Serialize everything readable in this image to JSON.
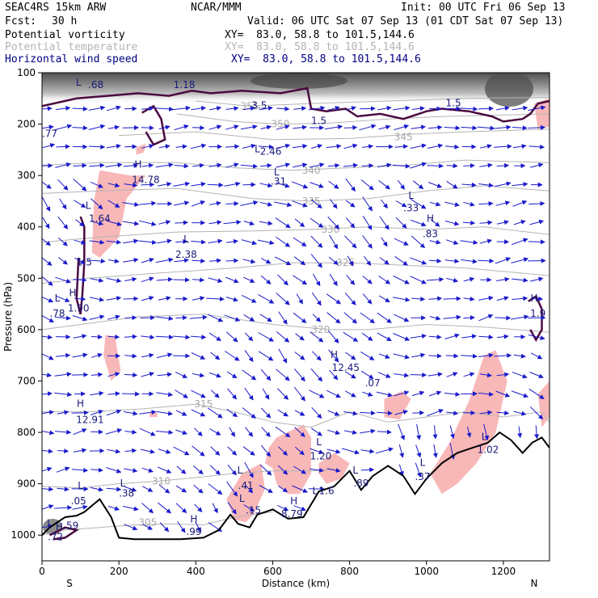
{
  "header": {
    "model": "SEAC4RS 15km ARW",
    "center": "NCAR/MMM",
    "init": "Init: 00 UTC Fri 06 Sep 13",
    "fcst_label": "Fcst:",
    "fcst_value": "30 h",
    "valid": "Valid: 06 UTC Sat 07 Sep 13 (01 CDT Sat 07 Sep 13)",
    "fields": [
      {
        "name": "Potential vorticity",
        "xy": "XY=  83.0, 58.8 to 101.5,144.6",
        "color": "#000000"
      },
      {
        "name": "Potential temperature",
        "xy": "XY=  83.0, 58.8 to 101.5,144.6",
        "color": "#b4b4b4"
      },
      {
        "name": "Horizontal wind speed",
        "xy": "XY=  83.0, 58.8 to 101.5,144.6",
        "color": "#000080"
      }
    ]
  },
  "chart_data": {
    "type": "cross-section",
    "xlabel": "Distance (km)",
    "ylabel": "Pressure (hPa)",
    "xlim": [
      0,
      1320
    ],
    "ylim": [
      1050,
      100
    ],
    "x_ticks": [
      0,
      200,
      400,
      600,
      800,
      1000,
      1200
    ],
    "y_ticks": [
      100,
      200,
      300,
      400,
      500,
      600,
      700,
      800,
      900,
      1000
    ],
    "x_end_labels": {
      "left": "S",
      "right": "N"
    },
    "terrain": [
      [
        0,
        1000
      ],
      [
        20,
        985
      ],
      [
        60,
        965
      ],
      [
        90,
        962
      ],
      [
        110,
        955
      ],
      [
        150,
        930
      ],
      [
        180,
        965
      ],
      [
        200,
        1005
      ],
      [
        240,
        1008
      ],
      [
        300,
        1008
      ],
      [
        360,
        1008
      ],
      [
        420,
        1005
      ],
      [
        460,
        990
      ],
      [
        490,
        960
      ],
      [
        510,
        978
      ],
      [
        540,
        985
      ],
      [
        560,
        960
      ],
      [
        600,
        950
      ],
      [
        640,
        968
      ],
      [
        680,
        965
      ],
      [
        720,
        915
      ],
      [
        760,
        905
      ],
      [
        800,
        875
      ],
      [
        830,
        912
      ],
      [
        860,
        885
      ],
      [
        900,
        865
      ],
      [
        940,
        885
      ],
      [
        970,
        920
      ],
      [
        1000,
        890
      ],
      [
        1040,
        860
      ],
      [
        1080,
        840
      ],
      [
        1120,
        830
      ],
      [
        1160,
        820
      ],
      [
        1190,
        800
      ],
      [
        1220,
        815
      ],
      [
        1250,
        840
      ],
      [
        1275,
        820
      ],
      [
        1300,
        810
      ],
      [
        1320,
        830
      ]
    ],
    "isentropes": [
      {
        "theta": 305,
        "label_at": [
          275,
          975
        ],
        "p": [
          [
            0,
            1000
          ],
          [
            60,
            990
          ],
          [
            150,
            985
          ],
          [
            240,
            980
          ],
          [
            330,
            978
          ],
          [
            420,
            980
          ],
          [
            500,
            965
          ],
          [
            600,
            955
          ]
        ]
      },
      {
        "theta": 310,
        "label_at": [
          310,
          895
        ],
        "p": [
          [
            0,
            905
          ],
          [
            100,
            908
          ],
          [
            200,
            900
          ],
          [
            300,
            895
          ],
          [
            400,
            888
          ],
          [
            500,
            880
          ],
          [
            600,
            875
          ],
          [
            700,
            875
          ],
          [
            760,
            872
          ]
        ]
      },
      {
        "theta": 315,
        "label_at": [
          420,
          745
        ],
        "p": [
          [
            0,
            760
          ],
          [
            120,
            760
          ],
          [
            250,
            755
          ],
          [
            400,
            745
          ],
          [
            500,
            760
          ],
          [
            600,
            780
          ],
          [
            700,
            790
          ],
          [
            800,
            760
          ],
          [
            900,
            780
          ],
          [
            1000,
            770
          ],
          [
            1100,
            760
          ],
          [
            1200,
            770
          ],
          [
            1300,
            760
          ],
          [
            1320,
            780
          ]
        ]
      },
      {
        "theta": 320,
        "label_at": [
          725,
          600
        ],
        "p": [
          [
            0,
            600
          ],
          [
            100,
            590
          ],
          [
            250,
            575
          ],
          [
            420,
            570
          ],
          [
            600,
            590
          ],
          [
            750,
            600
          ],
          [
            850,
            600
          ],
          [
            1000,
            590
          ],
          [
            1150,
            595
          ],
          [
            1320,
            605
          ]
        ]
      },
      {
        "theta": 325,
        "label_at": [
          790,
          470
        ],
        "p": [
          [
            0,
            510
          ],
          [
            120,
            500
          ],
          [
            300,
            490
          ],
          [
            500,
            480
          ],
          [
            650,
            470
          ],
          [
            800,
            470
          ],
          [
            950,
            475
          ],
          [
            1100,
            480
          ],
          [
            1320,
            495
          ]
        ]
      },
      {
        "theta": 330,
        "label_at": [
          750,
          405
        ],
        "p": [
          [
            0,
            430
          ],
          [
            150,
            420
          ],
          [
            350,
            410
          ],
          [
            550,
            408
          ],
          [
            700,
            405
          ],
          [
            850,
            400
          ],
          [
            1000,
            405
          ],
          [
            1150,
            400
          ],
          [
            1320,
            415
          ]
        ]
      },
      {
        "theta": 335,
        "label_at": [
          700,
          350
        ],
        "p": [
          [
            0,
            335
          ],
          [
            150,
            330
          ],
          [
            350,
            325
          ],
          [
            550,
            345
          ],
          [
            700,
            350
          ],
          [
            850,
            345
          ],
          [
            1000,
            330
          ],
          [
            1150,
            320
          ],
          [
            1320,
            330
          ]
        ]
      },
      {
        "theta": 340,
        "label_at": [
          700,
          290
        ],
        "p": [
          [
            0,
            280
          ],
          [
            150,
            275
          ],
          [
            350,
            275
          ],
          [
            500,
            285
          ],
          [
            650,
            290
          ],
          [
            800,
            285
          ],
          [
            950,
            280
          ],
          [
            1100,
            270
          ],
          [
            1320,
            275
          ]
        ]
      },
      {
        "theta": 345,
        "label_at": [
          940,
          225
        ],
        "p": [
          [
            200,
            222
          ],
          [
            400,
            215
          ],
          [
            600,
            230
          ],
          [
            800,
            228
          ],
          [
            950,
            220
          ],
          [
            1100,
            215
          ],
          [
            1320,
            210
          ]
        ]
      },
      {
        "theta": 350,
        "label_at": [
          620,
          200
        ],
        "p": [
          [
            350,
            180
          ],
          [
            500,
            195
          ],
          [
            620,
            200
          ],
          [
            750,
            198
          ],
          [
            900,
            190
          ],
          [
            1050,
            185
          ],
          [
            1320,
            180
          ]
        ]
      },
      {
        "theta": 355,
        "label_at": [
          540,
          165
        ],
        "p": [
          [
            400,
            155
          ],
          [
            540,
            165
          ],
          [
            700,
            160
          ],
          [
            900,
            155
          ],
          [
            1100,
            150
          ],
          [
            1320,
            148
          ]
        ]
      }
    ],
    "pv_contours": [
      {
        "p": [
          [
            0,
            165
          ],
          [
            90,
            150
          ],
          [
            170,
            145
          ],
          [
            250,
            140
          ],
          [
            330,
            145
          ],
          [
            390,
            135
          ],
          [
            440,
            140
          ],
          [
            520,
            135
          ],
          [
            620,
            140
          ],
          [
            690,
            130
          ],
          [
            700,
            170
          ],
          [
            740,
            175
          ],
          [
            790,
            170
          ],
          [
            820,
            185
          ],
          [
            880,
            180
          ],
          [
            940,
            190
          ],
          [
            1000,
            175
          ],
          [
            1040,
            170
          ],
          [
            1110,
            175
          ],
          [
            1140,
            180
          ],
          [
            1170,
            185
          ],
          [
            1200,
            195
          ],
          [
            1250,
            190
          ],
          [
            1270,
            180
          ],
          [
            1290,
            160
          ],
          [
            1320,
            155
          ]
        ]
      }
    ],
    "hl_labels": [
      {
        "text": "L",
        "x": 95,
        "p": 125
      },
      {
        "text": ".68",
        "x": 140,
        "p": 130
      },
      {
        "text": "1.18",
        "x": 370,
        "p": 130
      },
      {
        "text": "L",
        "x": 560,
        "p": 255
      },
      {
        "text": "2.46",
        "x": 595,
        "p": 260
      },
      {
        "text": "1.5",
        "x": 1070,
        "p": 165
      },
      {
        "text": "1.5",
        "x": 720,
        "p": 200
      },
      {
        "text": "3.5",
        "x": 565,
        "p": 170
      },
      {
        "text": ".77",
        "x": 20,
        "p": 225
      },
      {
        "text": "H",
        "x": 250,
        "p": 285
      },
      {
        "text": "14.78",
        "x": 270,
        "p": 315
      },
      {
        "text": "L",
        "x": 610,
        "p": 300
      },
      {
        "text": ".31",
        "x": 615,
        "p": 318
      },
      {
        "text": "L",
        "x": 960,
        "p": 345
      },
      {
        "text": ".33",
        "x": 960,
        "p": 370
      },
      {
        "text": "L",
        "x": 120,
        "p": 365
      },
      {
        "text": "1.64",
        "x": 150,
        "p": 390
      },
      {
        "text": "H",
        "x": 1010,
        "p": 390
      },
      {
        "text": ".83",
        "x": 1010,
        "p": 420
      },
      {
        "text": "L",
        "x": 375,
        "p": 430
      },
      {
        "text": "2.38",
        "x": 375,
        "p": 460
      },
      {
        "text": "1.5",
        "x": 110,
        "p": 475
      },
      {
        "text": "L",
        "x": 40,
        "p": 545
      },
      {
        "text": "H",
        "x": 80,
        "p": 535
      },
      {
        "text": ".78",
        "x": 40,
        "p": 575
      },
      {
        "text": "1.90",
        "x": 95,
        "p": 565
      },
      {
        "text": "H",
        "x": 1280,
        "p": 545
      },
      {
        "text": "1.9",
        "x": 1290,
        "p": 575
      },
      {
        "text": "H",
        "x": 760,
        "p": 655
      },
      {
        "text": "12.45",
        "x": 790,
        "p": 680
      },
      {
        "text": ".07",
        "x": 860,
        "p": 710
      },
      {
        "text": "H",
        "x": 100,
        "p": 750
      },
      {
        "text": "12.91",
        "x": 125,
        "p": 782
      },
      {
        "text": "L",
        "x": 720,
        "p": 825
      },
      {
        "text": "1.20",
        "x": 725,
        "p": 853
      },
      {
        "text": "L",
        "x": 1150,
        "p": 815
      },
      {
        "text": "1.02",
        "x": 1160,
        "p": 840
      },
      {
        "text": "L",
        "x": 990,
        "p": 865
      },
      {
        "text": ".37",
        "x": 990,
        "p": 893
      },
      {
        "text": "L",
        "x": 515,
        "p": 880
      },
      {
        "text": ".41",
        "x": 530,
        "p": 910
      },
      {
        "text": "L",
        "x": 815,
        "p": 880
      },
      {
        "text": ".89",
        "x": 830,
        "p": 905
      },
      {
        "text": "L",
        "x": 100,
        "p": 910
      },
      {
        "text": ".05",
        "x": 95,
        "p": 940
      },
      {
        "text": "L",
        "x": 210,
        "p": 905
      },
      {
        "text": ".38",
        "x": 220,
        "p": 925
      },
      {
        "text": "L",
        "x": 520,
        "p": 935
      },
      {
        "text": ".15",
        "x": 550,
        "p": 958
      },
      {
        "text": "L",
        "x": 710,
        "p": 920
      },
      {
        "text": "1.6",
        "x": 740,
        "p": 920
      },
      {
        "text": "H",
        "x": 655,
        "p": 940
      },
      {
        "text": "8.79",
        "x": 650,
        "p": 965
      },
      {
        "text": "H",
        "x": 395,
        "p": 975
      },
      {
        "text": ".99",
        "x": 395,
        "p": 1000
      },
      {
        "text": "L",
        "x": 20,
        "p": 983
      },
      {
        "text": "H",
        "x": 45,
        "p": 990
      },
      {
        "text": ".72",
        "x": 35,
        "p": 1010
      },
      {
        "text": ".59",
        "x": 75,
        "p": 988
      }
    ],
    "pink_regions": [
      [
        [
          150,
          290
        ],
        [
          230,
          300
        ],
        [
          270,
          300
        ],
        [
          220,
          345
        ],
        [
          200,
          420
        ],
        [
          150,
          460
        ],
        [
          130,
          450
        ],
        [
          135,
          350
        ]
      ],
      [
        [
          165,
          610
        ],
        [
          190,
          615
        ],
        [
          205,
          680
        ],
        [
          180,
          700
        ],
        [
          160,
          650
        ]
      ],
      [
        [
          280,
          760
        ],
        [
          300,
          762
        ],
        [
          300,
          770
        ],
        [
          280,
          770
        ]
      ],
      [
        [
          890,
          735
        ],
        [
          935,
          720
        ],
        [
          960,
          735
        ],
        [
          930,
          775
        ],
        [
          890,
          770
        ]
      ],
      [
        [
          1150,
          650
        ],
        [
          1180,
          640
        ],
        [
          1210,
          700
        ],
        [
          1180,
          800
        ],
        [
          1130,
          860
        ],
        [
          1080,
          900
        ],
        [
          1040,
          920
        ],
        [
          1010,
          880
        ],
        [
          1060,
          820
        ],
        [
          1110,
          740
        ]
      ],
      [
        [
          1290,
          725
        ],
        [
          1320,
          700
        ],
        [
          1320,
          770
        ],
        [
          1300,
          790
        ]
      ],
      [
        [
          520,
          880
        ],
        [
          570,
          860
        ],
        [
          580,
          910
        ],
        [
          550,
          960
        ],
        [
          530,
          975
        ],
        [
          500,
          970
        ],
        [
          480,
          930
        ]
      ],
      [
        [
          610,
          810
        ],
        [
          680,
          785
        ],
        [
          700,
          810
        ],
        [
          700,
          880
        ],
        [
          670,
          920
        ],
        [
          640,
          920
        ],
        [
          610,
          900
        ],
        [
          600,
          870
        ],
        [
          580,
          860
        ],
        [
          590,
          830
        ]
      ],
      [
        [
          720,
          860
        ],
        [
          760,
          840
        ],
        [
          800,
          860
        ],
        [
          780,
          890
        ],
        [
          740,
          900
        ],
        [
          720,
          880
        ]
      ],
      [
        [
          1280,
          160
        ],
        [
          1320,
          150
        ],
        [
          1320,
          205
        ],
        [
          1290,
          210
        ]
      ],
      [
        [
          245,
          245
        ],
        [
          270,
          238
        ],
        [
          265,
          255
        ],
        [
          245,
          260
        ]
      ]
    ],
    "wind_vector_color": "#1a1acc",
    "pink_color": "#f8b8b8",
    "pv_color": "#4a0a40"
  }
}
